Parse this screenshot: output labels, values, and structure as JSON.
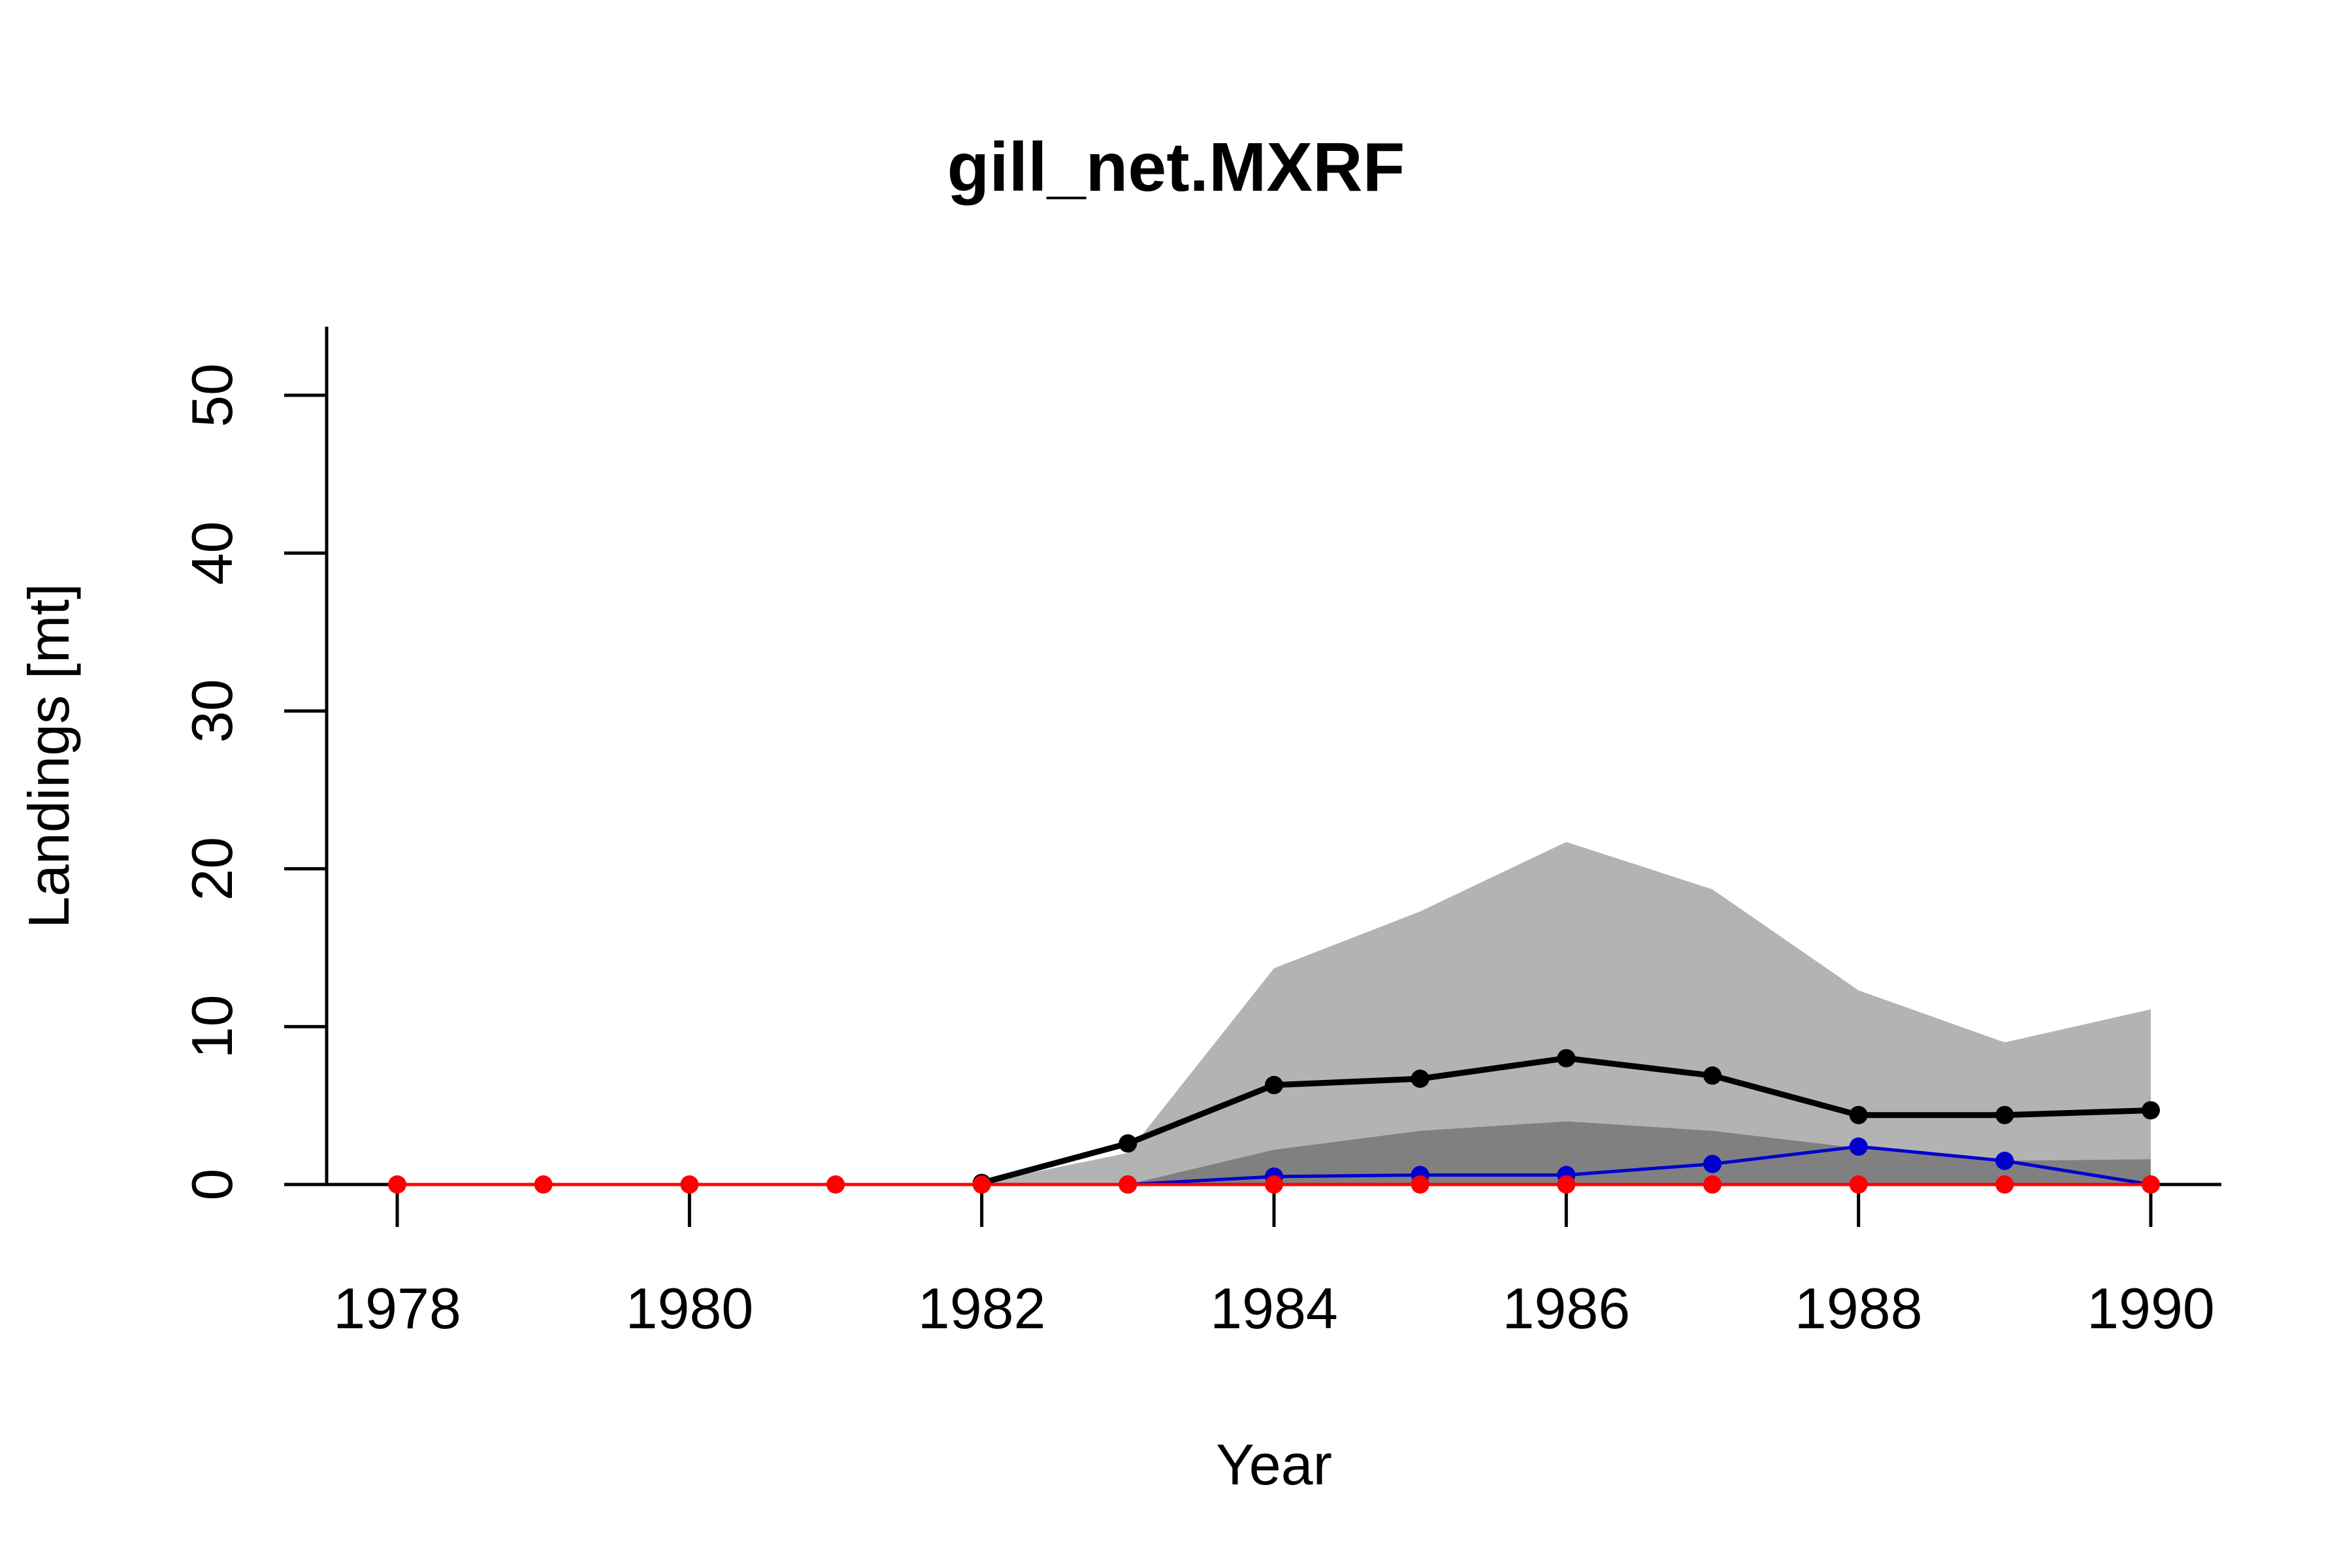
{
  "chart_data": {
    "type": "line",
    "title": "gill_net.MXRF",
    "xlabel": "Year",
    "ylabel": "Landings [mt]",
    "xlim": [
      1977.5,
      1990.5
    ],
    "ylim": [
      0,
      54
    ],
    "x_ticks": [
      1978,
      1980,
      1982,
      1984,
      1986,
      1988,
      1990
    ],
    "y_ticks": [
      0,
      10,
      20,
      30,
      40,
      50
    ],
    "grid": false,
    "legend": "none",
    "x": [
      1978,
      1979,
      1980,
      1981,
      1982,
      1983,
      1984,
      1985,
      1986,
      1987,
      1988,
      1989,
      1990
    ],
    "bands": [
      {
        "color": "#b3b3b3",
        "x": [
          1982,
          1983,
          1984,
          1985,
          1986,
          1987,
          1988,
          1989,
          1990
        ],
        "lower": [
          0,
          0,
          0,
          0,
          0,
          0,
          0,
          0,
          0
        ],
        "upper": [
          0.1,
          2.0,
          13.7,
          17.3,
          21.7,
          18.7,
          12.3,
          9.0,
          11.1
        ]
      },
      {
        "color": "#808080",
        "x": [
          1983,
          1984,
          1985,
          1986,
          1987,
          1988,
          1989,
          1990
        ],
        "lower": [
          0,
          0,
          0,
          0,
          0,
          0,
          0,
          0
        ],
        "upper": [
          0,
          2.2,
          3.4,
          4.0,
          3.4,
          2.3,
          1.5,
          1.6
        ]
      }
    ],
    "series": [
      {
        "color": "#000000",
        "x": [
          1982,
          1983,
          1984,
          1985,
          1986,
          1987,
          1988,
          1989,
          1990
        ],
        "values": [
          0.1,
          2.6,
          6.3,
          6.7,
          8.0,
          6.9,
          4.4,
          4.4,
          4.7
        ]
      },
      {
        "color": "#0000cd",
        "x": [
          1983,
          1984,
          1985,
          1986,
          1987,
          1988,
          1989,
          1990
        ],
        "values": [
          0,
          0.5,
          0.6,
          0.6,
          1.3,
          2.4,
          1.5,
          0
        ]
      },
      {
        "color": "#ff0000",
        "x": [
          1978,
          1979,
          1980,
          1981,
          1982,
          1983,
          1984,
          1985,
          1986,
          1987,
          1988,
          1989,
          1990
        ],
        "values": [
          0,
          0,
          0,
          0,
          0,
          0,
          0,
          0,
          0,
          0,
          0,
          0,
          0
        ]
      }
    ]
  }
}
